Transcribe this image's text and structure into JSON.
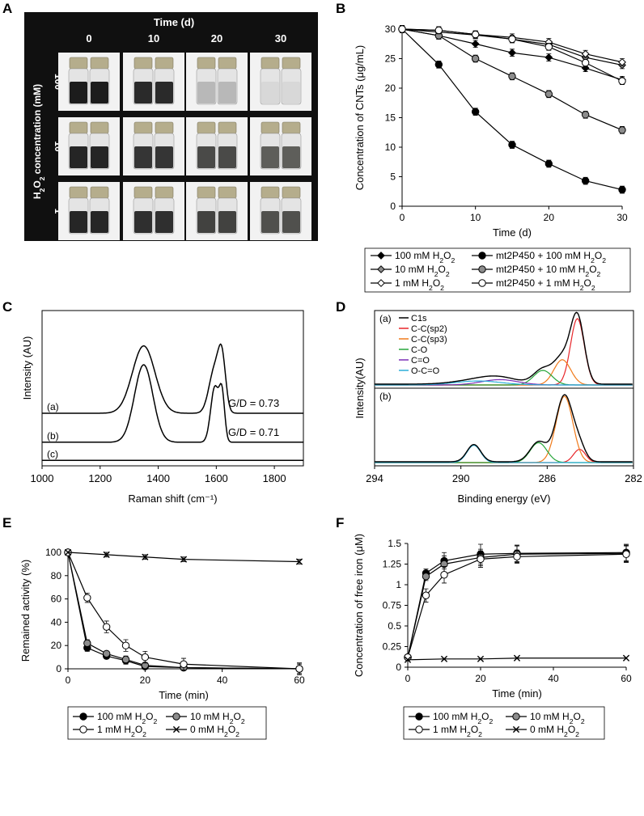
{
  "panel_labels": {
    "A": "A",
    "B": "B",
    "C": "C",
    "D": "D",
    "E": "E",
    "F": "F"
  },
  "photo_panel": {
    "title": "Time (d)",
    "days": [
      "0",
      "10",
      "20",
      "30"
    ],
    "ylabel": "H2O2 concentration (mM)",
    "rows": [
      "100",
      "10",
      "1"
    ],
    "liquid_colors": [
      [
        "#1c1c1c",
        "#2a2a2a",
        "#b8b8b8",
        "#d8d8d8"
      ],
      [
        "#252525",
        "#353535",
        "#4a4a48",
        "#5e5e5a"
      ],
      [
        "#262626",
        "#2f2f2f",
        "#424240",
        "#50504d"
      ]
    ],
    "cap_color": "#b5ad8c",
    "bg_colors": [
      "#101010",
      "#f2f2f2"
    ]
  },
  "chart_data": [
    {
      "id": "B",
      "type": "line",
      "xlabel": "Time (d)",
      "ylabel": "Concentration of CNTs (μg/mL)",
      "xlim": [
        0,
        30
      ],
      "ylim": [
        0,
        30
      ],
      "xticks": [
        "0",
        "10",
        "20",
        "30"
      ],
      "yticks": [
        "0",
        "5",
        "10",
        "15",
        "20",
        "25",
        "30"
      ],
      "series": [
        {
          "name": "100 mM H2O2",
          "marker": "diamond-black",
          "x": [
            0,
            5,
            10,
            15,
            20,
            25,
            30
          ],
          "values": [
            30,
            28.9,
            27.5,
            26.0,
            25.2,
            23.4,
            21.4
          ]
        },
        {
          "name": "10 mM H2O2",
          "marker": "diamond-gray",
          "x": [
            0,
            5,
            10,
            15,
            20,
            25,
            30
          ],
          "values": [
            30,
            29.5,
            29.0,
            28.3,
            27.4,
            25.2,
            23.9
          ]
        },
        {
          "name": "1 mM H2O2",
          "marker": "diamond-white",
          "x": [
            0,
            5,
            10,
            15,
            20,
            25,
            30
          ],
          "values": [
            30,
            29.8,
            29.1,
            28.6,
            27.8,
            25.8,
            24.4
          ]
        },
        {
          "name": "mt2P450 + 100 mM H2O2",
          "marker": "circle-black",
          "x": [
            0,
            5,
            10,
            15,
            20,
            25,
            30
          ],
          "values": [
            30,
            24.0,
            16.0,
            10.4,
            7.2,
            4.3,
            2.8
          ]
        },
        {
          "name": "mt2P450 + 10 mM H2O2",
          "marker": "circle-gray",
          "x": [
            0,
            5,
            10,
            15,
            20,
            25,
            30
          ],
          "values": [
            30,
            28.9,
            25.0,
            22.0,
            19.0,
            15.5,
            12.9
          ]
        },
        {
          "name": "mt2P450 + 1 mM H2O2",
          "marker": "circle-white",
          "x": [
            0,
            5,
            10,
            15,
            20,
            25,
            30
          ],
          "values": [
            30,
            29.8,
            29.1,
            28.3,
            27.0,
            24.3,
            21.2
          ]
        }
      ],
      "legend": [
        "100 mM H₂O₂",
        "mt2P450 + 100 mM H₂O₂",
        "10 mM H₂O₂",
        "mt2P450 + 10 mM H₂O₂",
        "1 mM H₂O₂",
        "mt2P450 + 1 mM H₂O₂"
      ]
    },
    {
      "id": "C",
      "type": "line",
      "xlabel": "Raman shift (cm⁻¹)",
      "ylabel": "Intensity (AU)",
      "xlim": [
        1000,
        1900
      ],
      "xticks": [
        "1000",
        "1200",
        "1400",
        "1600",
        "1800"
      ],
      "series": [
        {
          "name": "(a)",
          "ratio_label": "G/D = 0.73",
          "baseline": 0.78,
          "peaks": [
            {
              "center": 1350,
              "height": 1.0,
              "width": 55
            },
            {
              "center": 1595,
              "height": 0.66,
              "width": 28
            },
            {
              "center": 1620,
              "height": 0.68,
              "width": 18
            }
          ]
        },
        {
          "name": "(b)",
          "ratio_label": "G/D = 0.71",
          "baseline": 0.35,
          "peaks": [
            {
              "center": 1350,
              "height": 1.15,
              "width": 45
            },
            {
              "center": 1595,
              "height": 0.82,
              "width": 20
            },
            {
              "center": 1620,
              "height": 0.66,
              "width": 13
            }
          ]
        },
        {
          "name": "(c)",
          "baseline": 0.08,
          "peaks": []
        }
      ]
    },
    {
      "id": "D",
      "type": "line",
      "xlabel": "Binding energy (eV)",
      "ylabel": "Intensity(AU)",
      "xlim": [
        294,
        282
      ],
      "xticks": [
        "294",
        "290",
        "286",
        "282"
      ],
      "components": [
        {
          "name": "C1s",
          "color": "#000000"
        },
        {
          "name": "C-C(sp2)",
          "color": "#e8262a"
        },
        {
          "name": "C-C(sp3)",
          "color": "#f07a1a"
        },
        {
          "name": "C-O",
          "color": "#27a53a"
        },
        {
          "name": "C=O",
          "color": "#7a2fb5"
        },
        {
          "name": "O-C=O",
          "color": "#2aaed8"
        }
      ],
      "subpanels": [
        {
          "name": "(a)",
          "peaks": [
            {
              "component": "C-C(sp2)",
              "center": 284.6,
              "height": 1.0,
              "width": 0.45
            },
            {
              "component": "C-C(sp3)",
              "center": 285.3,
              "height": 0.38,
              "width": 0.55
            },
            {
              "component": "C-O",
              "center": 286.2,
              "height": 0.22,
              "width": 0.6
            },
            {
              "component": "C=O",
              "center": 288.2,
              "height": 0.08,
              "width": 1.2
            },
            {
              "component": "O-C=O",
              "center": 289.2,
              "height": 0.06,
              "width": 1.5
            }
          ]
        },
        {
          "name": "(b)",
          "peaks": [
            {
              "component": "C-C(sp2)",
              "center": 284.5,
              "height": 0.2,
              "width": 0.4
            },
            {
              "component": "C-C(sp3)",
              "center": 285.2,
              "height": 1.0,
              "width": 0.55
            },
            {
              "component": "C-O",
              "center": 286.4,
              "height": 0.3,
              "width": 0.55
            },
            {
              "component": "O-C=O",
              "center": 289.4,
              "height": 0.26,
              "width": 0.45
            }
          ]
        }
      ]
    },
    {
      "id": "E",
      "type": "line",
      "xlabel": "Time (min)",
      "ylabel": "Remained activity (%)",
      "xlim": [
        0,
        60
      ],
      "ylim": [
        0,
        100
      ],
      "xticks": [
        "0",
        "20",
        "40",
        "60"
      ],
      "yticks": [
        "0",
        "20",
        "40",
        "60",
        "80",
        "100"
      ],
      "series": [
        {
          "name": "100 mM H2O2",
          "marker": "circle-black",
          "x": [
            0,
            5,
            10,
            15,
            20,
            30,
            60
          ],
          "values": [
            100,
            18,
            11,
            7,
            2,
            1,
            0
          ],
          "err": [
            0,
            3,
            2,
            3,
            2,
            1,
            5
          ]
        },
        {
          "name": "10 mM H2O2",
          "marker": "circle-gray",
          "x": [
            0,
            5,
            10,
            15,
            20,
            30,
            60
          ],
          "values": [
            100,
            22,
            13,
            8,
            3,
            1,
            0
          ],
          "err": [
            0,
            3,
            2,
            3,
            2,
            1,
            4
          ]
        },
        {
          "name": "1 mM H2O2",
          "marker": "circle-white",
          "x": [
            0,
            5,
            10,
            15,
            20,
            30,
            60
          ],
          "values": [
            100,
            61,
            36,
            20,
            10,
            4,
            0
          ],
          "err": [
            0,
            4,
            5,
            5,
            5,
            5,
            5
          ]
        },
        {
          "name": "0 mM H2O2",
          "marker": "x",
          "x": [
            0,
            10,
            20,
            30,
            60
          ],
          "values": [
            100,
            98,
            96,
            94,
            92
          ],
          "err": [
            0,
            2,
            2,
            2,
            2
          ]
        }
      ],
      "legend": [
        "100 mM H₂O₂",
        "10 mM H₂O₂",
        "1 mM H₂O₂",
        "0 mM H₂O₂"
      ]
    },
    {
      "id": "F",
      "type": "line",
      "xlabel": "Time (min)",
      "ylabel": "Concentration of free iron (μM)",
      "xlim": [
        0,
        60
      ],
      "ylim": [
        0,
        1.5
      ],
      "xticks": [
        "0",
        "20",
        "40",
        "60"
      ],
      "yticks": [
        "0",
        "0.25",
        "0.5",
        "0.75",
        "1",
        "1.25",
        "1.5"
      ],
      "series": [
        {
          "name": "100 mM H2O2",
          "marker": "circle-black",
          "x": [
            0,
            5,
            10,
            20,
            30,
            60
          ],
          "values": [
            0.12,
            1.14,
            1.29,
            1.37,
            1.38,
            1.39
          ],
          "err": [
            0,
            0.05,
            0.1,
            0.12,
            0.1,
            0.1
          ]
        },
        {
          "name": "10 mM H2O2",
          "marker": "circle-gray",
          "x": [
            0,
            5,
            10,
            20,
            30,
            60
          ],
          "values": [
            0.12,
            1.1,
            1.25,
            1.33,
            1.37,
            1.38
          ],
          "err": [
            0,
            0.05,
            0.1,
            0.1,
            0.1,
            0.1
          ]
        },
        {
          "name": "1 mM H2O2",
          "marker": "circle-white",
          "x": [
            0,
            5,
            10,
            20,
            30,
            60
          ],
          "values": [
            0.12,
            0.87,
            1.12,
            1.31,
            1.34,
            1.37
          ],
          "err": [
            0,
            0.08,
            0.1,
            0.1,
            0.08,
            0.1
          ]
        },
        {
          "name": "0 mM H2O2",
          "marker": "x",
          "x": [
            0,
            10,
            20,
            30,
            60
          ],
          "values": [
            0.09,
            0.1,
            0.1,
            0.11,
            0.11
          ],
          "err": [
            0,
            0,
            0,
            0,
            0
          ]
        }
      ],
      "legend": [
        "100 mM H₂O₂",
        "10 mM H₂O₂",
        "1 mM H₂O₂",
        "0 mM H₂O₂"
      ]
    }
  ]
}
